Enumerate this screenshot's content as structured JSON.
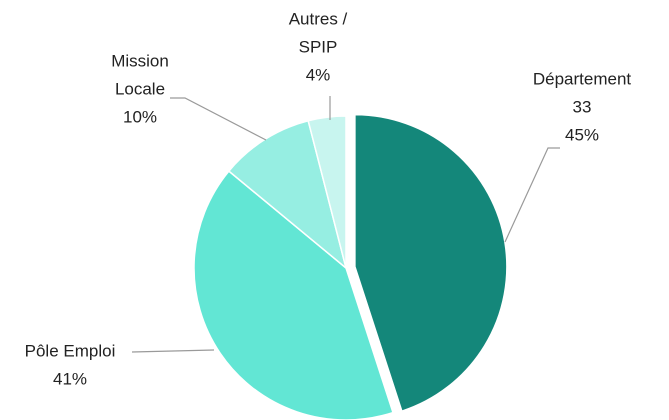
{
  "chart_data": {
    "type": "pie",
    "categories": [
      [
        "Département",
        "33"
      ],
      [
        "Pôle Emploi"
      ],
      [
        "Mission",
        "Locale"
      ],
      [
        "Autres /",
        "SPIP"
      ]
    ],
    "values": [
      45,
      41,
      10,
      4
    ],
    "value_labels": [
      "45%",
      "41%",
      "10%",
      "4%"
    ],
    "colors": [
      "#14877a",
      "#62e6d4",
      "#96eee2",
      "#c8f5ef"
    ]
  }
}
